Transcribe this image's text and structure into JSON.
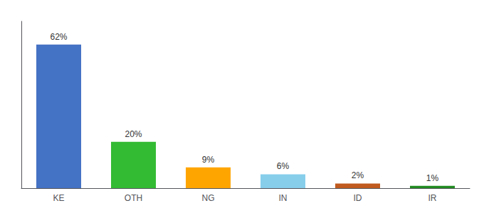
{
  "chart_data": {
    "type": "bar",
    "categories": [
      "KE",
      "OTH",
      "NG",
      "IN",
      "ID",
      "IR"
    ],
    "values": [
      62,
      20,
      9,
      6,
      2,
      1
    ],
    "value_labels": [
      "62%",
      "20%",
      "9%",
      "6%",
      "2%",
      "1%"
    ],
    "colors": [
      "#4472C4",
      "#33BB33",
      "#FFA500",
      "#87CEEB",
      "#C05A1F",
      "#228B22"
    ],
    "ylim": [
      0,
      72
    ],
    "grid": false,
    "legend": false,
    "data_labels": true,
    "tick_labels": "x"
  }
}
